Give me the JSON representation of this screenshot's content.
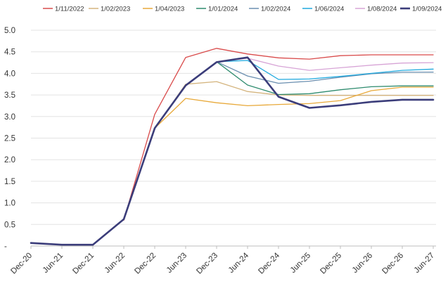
{
  "chart_data": {
    "type": "line",
    "title": "",
    "xlabel": "",
    "ylabel": "",
    "ylim": [
      0,
      5
    ],
    "yticks": [
      "-",
      "0.5",
      "1.0",
      "1.5",
      "2.0",
      "2.5",
      "3.0",
      "3.5",
      "4.0",
      "4.5",
      "5.0"
    ],
    "categories": [
      "Dec-20",
      "Jun-21",
      "Dec-21",
      "Jun-22",
      "Dec-22",
      "Jun-23",
      "Dec-23",
      "Jun-24",
      "Dec-24",
      "Jun-25",
      "Dec-25",
      "Jun-26",
      "Dec-26",
      "Jun-27"
    ],
    "grid": "horizontal",
    "legend_position": "top",
    "series": [
      {
        "name": "1/11/2022",
        "color": "#d94b4b",
        "width": 1.3,
        "x": [
          3,
          4,
          5,
          6,
          7,
          8,
          9,
          10,
          11,
          12,
          13
        ],
        "values": [
          0.6,
          3.05,
          4.37,
          4.58,
          4.45,
          4.36,
          4.33,
          4.41,
          4.43,
          4.43,
          4.43
        ]
      },
      {
        "name": "1/02/2023",
        "color": "#d4b47e",
        "width": 1.3,
        "x": [
          4,
          5,
          6,
          7,
          8,
          9,
          10,
          11,
          12,
          13
        ],
        "values": [
          2.73,
          3.75,
          3.81,
          3.58,
          3.5,
          3.49,
          3.49,
          3.49,
          3.49,
          3.49
        ]
      },
      {
        "name": "1/04/2023",
        "color": "#e8a93a",
        "width": 1.3,
        "x": [
          4,
          5,
          6,
          7,
          8,
          9,
          10,
          11,
          12,
          13
        ],
        "values": [
          2.73,
          3.42,
          3.32,
          3.25,
          3.28,
          3.3,
          3.37,
          3.6,
          3.68,
          3.68
        ]
      },
      {
        "name": "1/01/2024",
        "color": "#2e8b6e",
        "width": 1.3,
        "x": [
          6,
          7,
          8,
          9,
          10,
          11,
          12,
          13
        ],
        "values": [
          4.27,
          3.73,
          3.51,
          3.53,
          3.62,
          3.69,
          3.71,
          3.71
        ]
      },
      {
        "name": "1/02/2024",
        "color": "#6b8fb0",
        "width": 1.3,
        "x": [
          6,
          7,
          8,
          9,
          10,
          11,
          12,
          13
        ],
        "values": [
          4.27,
          3.94,
          3.77,
          3.82,
          3.91,
          3.99,
          4.03,
          4.03
        ]
      },
      {
        "name": "1/06/2024",
        "color": "#1fa9de",
        "width": 1.3,
        "x": [
          6,
          7,
          8,
          9,
          10,
          11,
          12,
          13
        ],
        "values": [
          4.27,
          4.3,
          3.86,
          3.87,
          3.93,
          4.0,
          4.07,
          4.1
        ]
      },
      {
        "name": "1/08/2024",
        "color": "#d7a4d6",
        "width": 1.3,
        "x": [
          6,
          7,
          8,
          9,
          10,
          11,
          12,
          13
        ],
        "values": [
          4.27,
          4.35,
          4.17,
          4.07,
          4.13,
          4.19,
          4.24,
          4.25
        ]
      },
      {
        "name": "1/09/2024",
        "color": "#3b3d7a",
        "width": 2.6,
        "x": [
          0,
          1,
          2,
          3,
          4,
          5,
          6,
          7,
          8,
          9,
          10,
          11,
          12,
          13
        ],
        "values": [
          0.07,
          0.03,
          0.03,
          0.62,
          2.73,
          3.72,
          4.26,
          4.37,
          3.46,
          3.2,
          3.26,
          3.34,
          3.39,
          3.39
        ]
      }
    ]
  }
}
